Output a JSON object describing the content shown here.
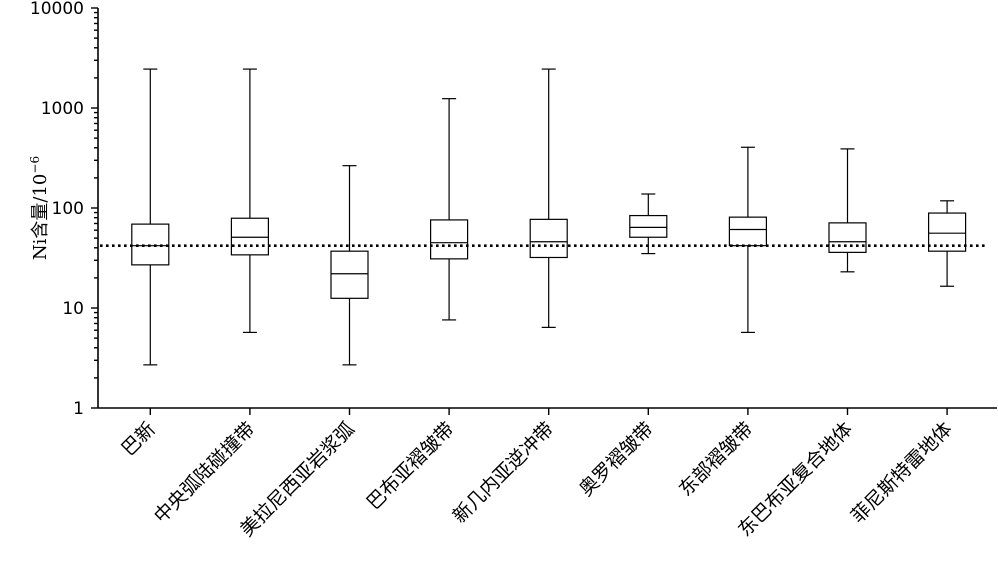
{
  "chart_data": {
    "type": "box",
    "ylabel": "Ni含量/10",
    "ylabel_superscript": "−6",
    "yscale": "log",
    "ylim": [
      1,
      10000
    ],
    "yticks": [
      1,
      10,
      100,
      1000,
      10000
    ],
    "ytick_labels": [
      "1",
      "10",
      "100",
      "1000",
      "10000"
    ],
    "grid": false,
    "reference_line": {
      "value": 42,
      "style": "dotted"
    },
    "categories": [
      "巴新",
      "中央弧陆碰撞带",
      "美拉尼西亚岩浆弧",
      "巴布亚褶皱带",
      "新几内亚逆冲带",
      "奥罗褶皱带",
      "东部褶皱带",
      "东巴布亚复合地体",
      "菲尼斯特雷地体"
    ],
    "boxes": [
      {
        "category": "巴新",
        "min": 2.7,
        "q1": 27,
        "median": 42,
        "q3": 69,
        "max": 2450
      },
      {
        "category": "中央弧陆碰撞带",
        "min": 5.7,
        "q1": 34,
        "median": 51,
        "q3": 79,
        "max": 2450
      },
      {
        "category": "美拉尼西亚岩浆弧",
        "min": 2.7,
        "q1": 12.5,
        "median": 22,
        "q3": 37,
        "max": 265
      },
      {
        "category": "巴布亚褶皱带",
        "min": 7.6,
        "q1": 31,
        "median": 45,
        "q3": 76,
        "max": 1240
      },
      {
        "category": "新几内亚逆冲带",
        "min": 6.4,
        "q1": 32,
        "median": 46,
        "q3": 77,
        "max": 2450
      },
      {
        "category": "奥罗褶皱带",
        "min": 35,
        "q1": 51,
        "median": 64,
        "q3": 84,
        "max": 138
      },
      {
        "category": "东部褶皱带",
        "min": 5.7,
        "q1": 42,
        "median": 61,
        "q3": 81,
        "max": 405
      },
      {
        "category": "东巴布亚复合地体",
        "min": 23,
        "q1": 36,
        "median": 46,
        "q3": 71,
        "max": 390
      },
      {
        "category": "菲尼斯特雷地体",
        "min": 16.5,
        "q1": 37,
        "median": 56,
        "q3": 89,
        "max": 118
      }
    ]
  }
}
